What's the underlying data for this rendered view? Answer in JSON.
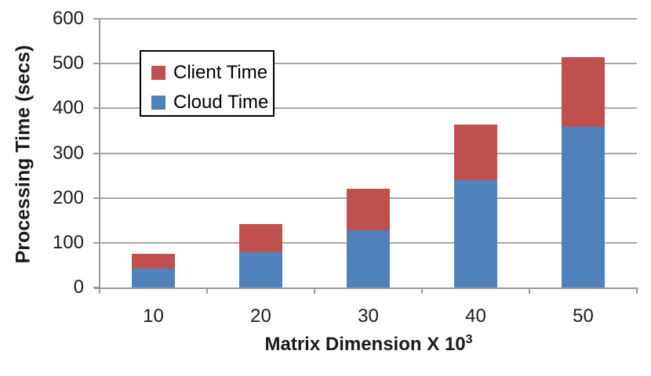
{
  "chart_data": {
    "type": "bar",
    "stacked": true,
    "title": "",
    "xlabel": "Matrix Dimension X 10³",
    "ylabel": "Processing Time (secs)",
    "categories": [
      "10",
      "20",
      "30",
      "40",
      "50"
    ],
    "series": [
      {
        "name": "Cloud Time",
        "color": "#4F81BD",
        "values": [
          42,
          78,
          128,
          240,
          358
        ]
      },
      {
        "name": "Client Time",
        "color": "#C0504D",
        "values": [
          34,
          63,
          93,
          124,
          157
        ]
      }
    ],
    "stack_totals": [
      76,
      141,
      221,
      364,
      515
    ],
    "ylim": [
      0,
      600
    ],
    "yticks": [
      0,
      100,
      200,
      300,
      400,
      500,
      600
    ],
    "grid": true,
    "legend_position": "upper-left-inside",
    "legend_order": [
      "Client Time",
      "Cloud Time"
    ]
  },
  "axes": {
    "y_title": "Processing Time (secs)",
    "x_title_base": "Matrix Dimension X 10",
    "x_title_superscript": "3"
  },
  "legend": {
    "items": [
      {
        "label": "Client Time",
        "color": "#C0504D"
      },
      {
        "label": "Cloud Time",
        "color": "#4F81BD"
      }
    ]
  },
  "colors": {
    "cloud_series": "#4F81BD",
    "client_series": "#C0504D",
    "gridline": "#A6A6A6",
    "axis_line": "#9A9A9A",
    "legend_border": "#000000",
    "background": "#FFFFFF",
    "text": "#1A1A1A"
  }
}
